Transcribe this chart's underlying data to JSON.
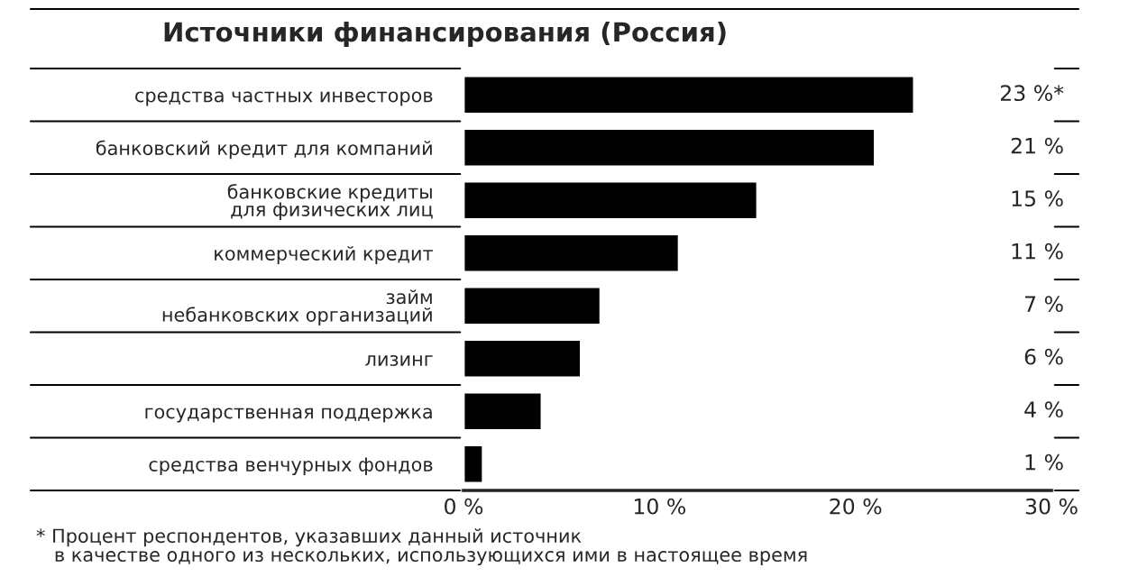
{
  "chart_data": {
    "type": "bar",
    "orientation": "horizontal",
    "title": "Источники финансирования (Россия)",
    "categories": [
      "средства частных инвесторов",
      "банковский кредит для компаний",
      "банковские кредиты\nдля физических лиц",
      "коммерческий кредит",
      "займ\nнебанковских организаций",
      "лизинг",
      "государственная поддержка",
      "средства венчурных фондов"
    ],
    "values": [
      23,
      21,
      15,
      11,
      7,
      6,
      4,
      1
    ],
    "value_labels": [
      "23 %*",
      "21 %",
      "15 %",
      "11 %",
      "7 %",
      "6 %",
      "4 %",
      "1 %"
    ],
    "color": "#000000",
    "xlim": [
      0,
      30
    ],
    "xticks": [
      {
        "value": 0,
        "label": "0 %"
      },
      {
        "value": 10,
        "label": "10 %"
      },
      {
        "value": 20,
        "label": "20 %"
      },
      {
        "value": 30,
        "label": "30 %"
      }
    ],
    "grid": false,
    "legend": false,
    "annotations": [
      "* Процент респондентов, указавших данный источник\n   в качестве одного из нескольких, использующихся ими в настоящее время"
    ]
  }
}
